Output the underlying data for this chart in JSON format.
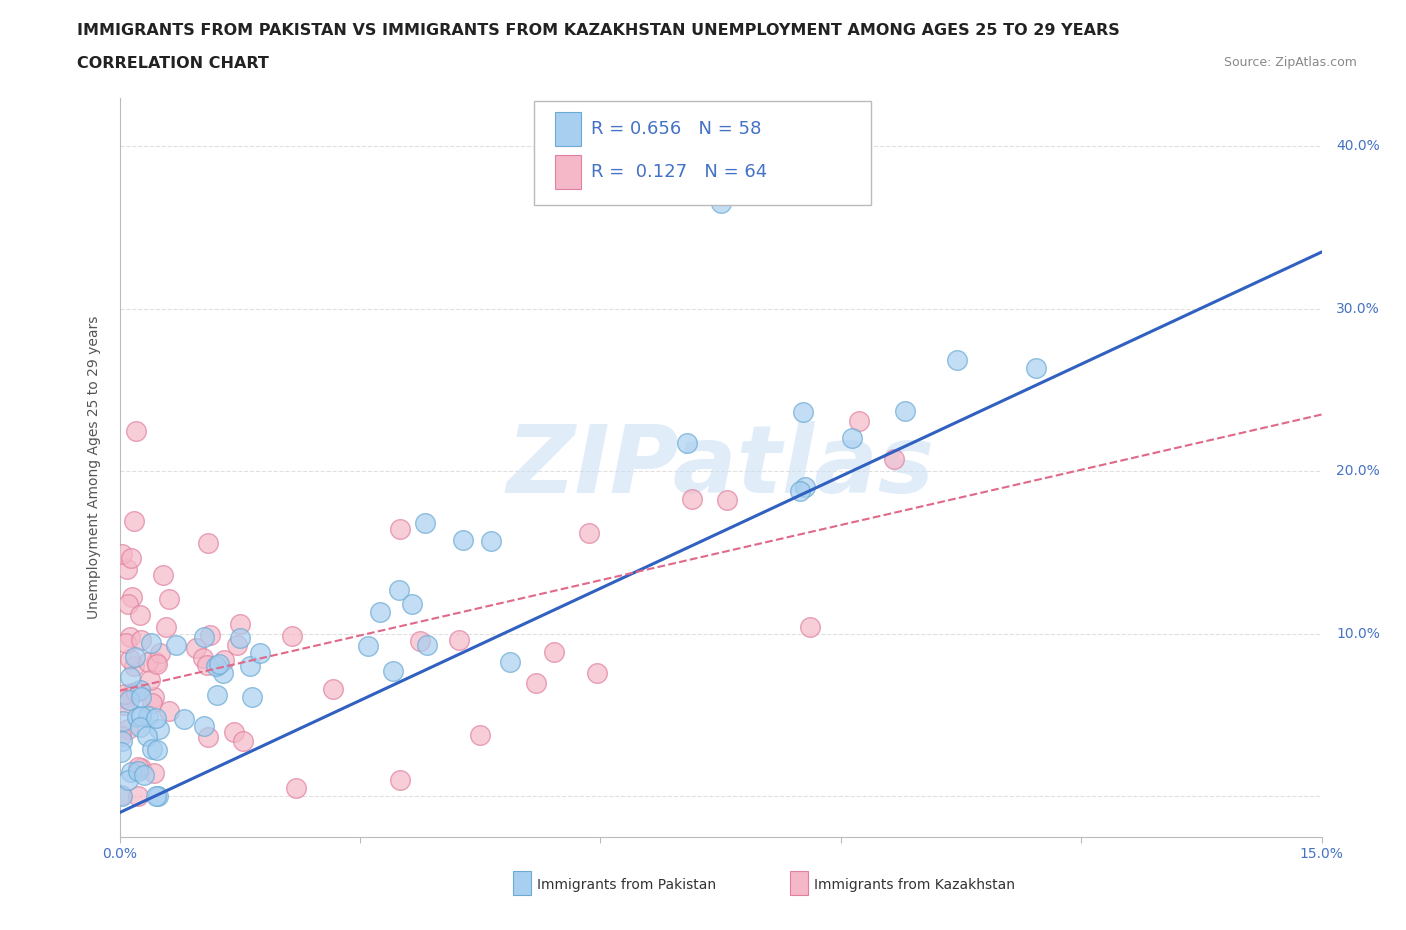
{
  "title_line1": "IMMIGRANTS FROM PAKISTAN VS IMMIGRANTS FROM KAZAKHSTAN UNEMPLOYMENT AMONG AGES 25 TO 29 YEARS",
  "title_line2": "CORRELATION CHART",
  "source_text": "Source: ZipAtlas.com",
  "ylabel": "Unemployment Among Ages 25 to 29 years",
  "xlim": [
    0.0,
    0.15
  ],
  "ylim": [
    -0.025,
    0.43
  ],
  "pakistan_color": "#a8cff0",
  "pakistan_edge": "#6aaad4",
  "kazakhstan_color": "#f5b8c8",
  "kazakhstan_edge": "#e080a0",
  "pakistan_line_color": "#3060c0",
  "kazakhstan_line_color": "#e06888",
  "r_pakistan": 0.656,
  "n_pakistan": 58,
  "r_kazakhstan": 0.127,
  "n_kazakhstan": 64,
  "pak_line_x0": 0.0,
  "pak_line_y0": -0.01,
  "pak_line_x1": 0.15,
  "pak_line_y1": 0.335,
  "kaz_line_x0": 0.0,
  "kaz_line_y0": 0.065,
  "kaz_line_x1": 0.15,
  "kaz_line_y1": 0.235,
  "background_color": "#ffffff",
  "grid_color": "#e0e0e0",
  "watermark_color": "#c8dff5",
  "title_fontsize": 11.5,
  "label_fontsize": 10,
  "tick_fontsize": 10,
  "legend_fontsize": 13
}
